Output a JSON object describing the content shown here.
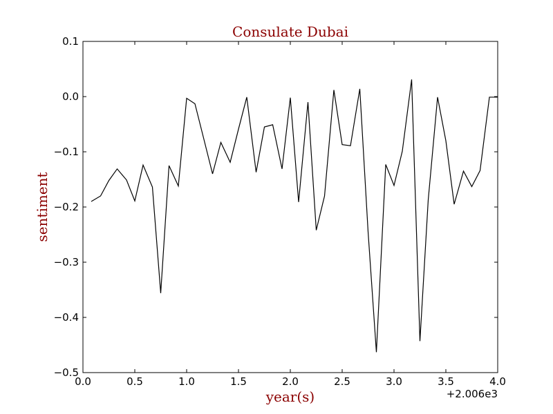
{
  "chart_data": {
    "type": "line",
    "title": "Consulate Dubai",
    "xlabel": "year(s)",
    "ylabel": "sentiment",
    "x_offset_label": "+2.006e3",
    "xlim": [
      0.0,
      4.0
    ],
    "ylim": [
      -0.5,
      0.1
    ],
    "x_ticks": [
      "0.0",
      "0.5",
      "1.0",
      "1.5",
      "2.0",
      "2.5",
      "3.0",
      "3.5",
      "4.0"
    ],
    "y_ticks": [
      "0.1",
      "0.0",
      "−0.1",
      "−0.2",
      "−0.3",
      "−0.4",
      "−0.5"
    ],
    "grid": false,
    "line_color": "#000000",
    "label_color": "#8b0000",
    "series": [
      {
        "x": [
          0.08,
          0.17,
          0.25,
          0.33,
          0.42,
          0.5,
          0.58,
          0.67,
          0.75,
          0.83,
          0.92,
          1.0,
          1.08,
          1.17,
          1.25,
          1.33,
          1.42,
          1.5,
          1.58,
          1.67,
          1.75,
          1.83,
          1.92,
          2.0,
          2.08,
          2.17,
          2.25,
          2.33,
          2.42,
          2.5,
          2.58,
          2.67,
          2.75,
          2.83,
          2.92,
          3.0,
          3.08,
          3.17,
          3.25,
          3.33,
          3.42,
          3.5,
          3.58,
          3.67,
          3.75,
          3.83,
          3.92,
          4.0
        ],
        "y": [
          -0.19,
          -0.18,
          -0.152,
          -0.131,
          -0.151,
          -0.189,
          -0.124,
          -0.164,
          -0.356,
          -0.125,
          -0.162,
          -0.003,
          -0.013,
          -0.08,
          -0.14,
          -0.083,
          -0.119,
          -0.059,
          -0.001,
          -0.137,
          -0.055,
          -0.051,
          -0.131,
          -0.002,
          -0.191,
          -0.01,
          -0.242,
          -0.18,
          0.012,
          -0.087,
          -0.089,
          0.014,
          -0.245,
          -0.463,
          -0.123,
          -0.161,
          -0.099,
          0.031,
          -0.443,
          -0.187,
          -0.001,
          -0.08,
          -0.195,
          -0.135,
          -0.163,
          -0.134,
          -0.001,
          -0.001
        ]
      }
    ]
  }
}
